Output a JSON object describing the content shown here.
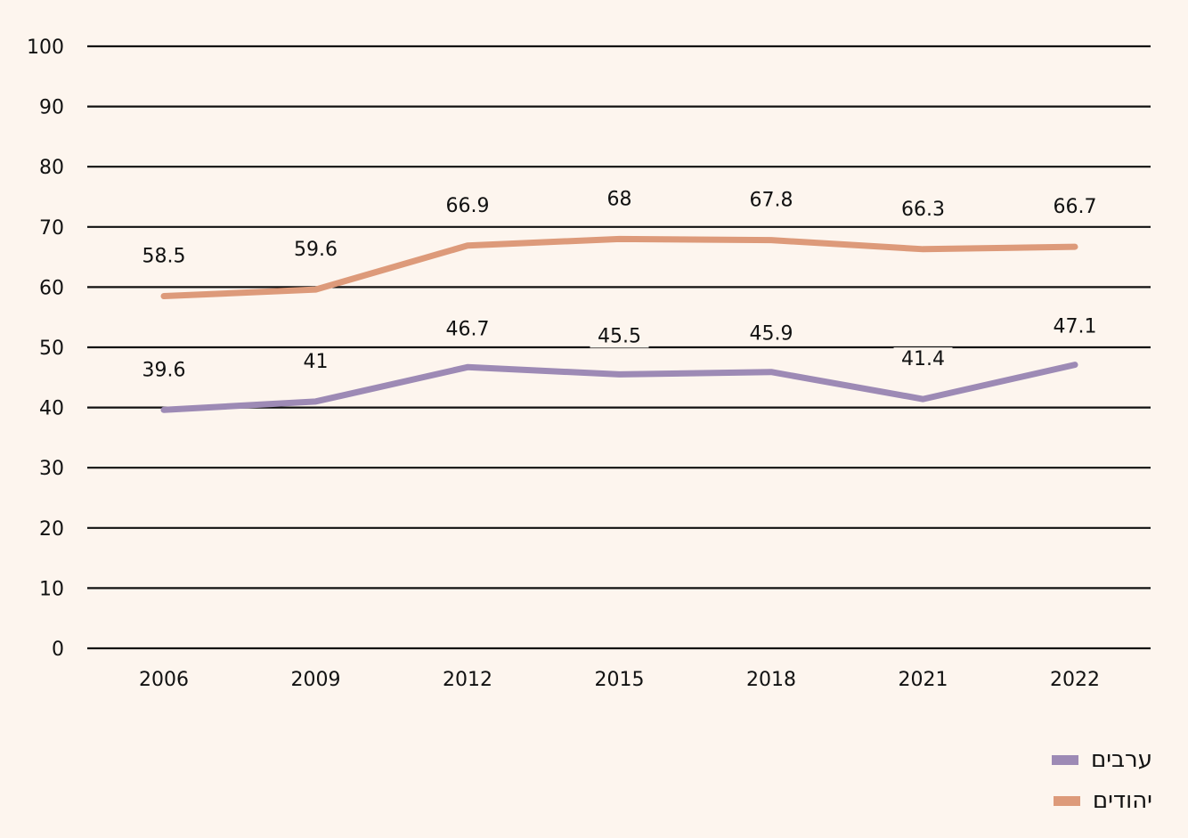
{
  "chart_data": {
    "type": "line",
    "x": [
      "2006",
      "2009",
      "2012",
      "2015",
      "2018",
      "2021",
      "2022"
    ],
    "ylim": [
      0,
      100
    ],
    "yticks": [
      0,
      10,
      20,
      30,
      40,
      50,
      60,
      70,
      80,
      90,
      100
    ],
    "grid": true,
    "legend_position": "bottom-right",
    "series": [
      {
        "name": "יהודים",
        "color": "#dd9a7a",
        "values": [
          58.5,
          59.6,
          66.9,
          68,
          67.8,
          66.3,
          66.7
        ],
        "labels": [
          "58.5",
          "59.6",
          "66.9",
          "68",
          "67.8",
          "66.3",
          "66.7"
        ]
      },
      {
        "name": "ערבים",
        "color": "#9d8ab5",
        "values": [
          39.6,
          41,
          46.7,
          45.5,
          45.9,
          41.4,
          47.1
        ],
        "labels": [
          "39.6",
          "41",
          "46.7",
          "45.5",
          "45.9",
          "41.4",
          "47.1"
        ]
      }
    ]
  },
  "colors": {
    "background": "#fdf5ee",
    "gridline": "#111111",
    "text": "#111111"
  },
  "legend": [
    {
      "label": "ערבים",
      "color": "#9d8ab5"
    },
    {
      "label": "יהודים",
      "color": "#dd9a7a"
    }
  ]
}
